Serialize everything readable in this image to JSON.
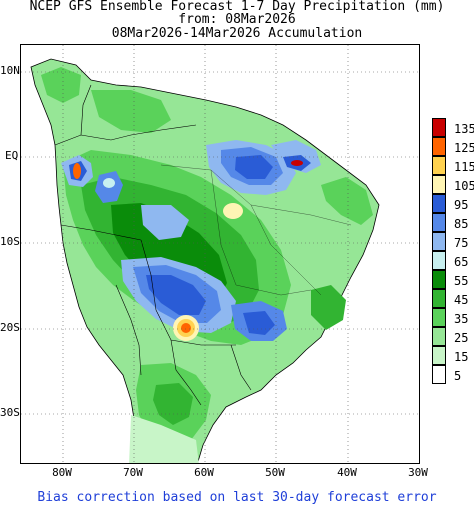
{
  "title": {
    "line1": "NCEP GFS Ensemble Forecast 1-7 Day Precipitation (mm)",
    "line2": "from: 08Mar2026",
    "line3": "08Mar2026-14Mar2026 Accumulation"
  },
  "footer": "Bias correction based on last 30-day forecast error",
  "axes": {
    "lat_labels": [
      "10N",
      "EQ",
      "10S",
      "20S",
      "30S"
    ],
    "lon_labels": [
      "80W",
      "70W",
      "60W",
      "50W",
      "40W",
      "30W"
    ]
  },
  "legend": {
    "levels": [
      "135",
      "125",
      "115",
      "105",
      "95",
      "85",
      "75",
      "65",
      "55",
      "45",
      "35",
      "25",
      "15",
      "5"
    ],
    "colors": [
      "#c80000",
      "#ff6400",
      "#ffd250",
      "#fff5b4",
      "#2a5cd6",
      "#5588e8",
      "#8fb8f0",
      "#c8f0f0",
      "#0a8c0a",
      "#32b432",
      "#5ad25a",
      "#96e696",
      "#c8f5c8",
      "#ffffff"
    ]
  },
  "map": {
    "region": "South America",
    "lat_range": [
      -36,
      14
    ],
    "lon_range": [
      -85,
      -30
    ],
    "grid": "dotted"
  }
}
